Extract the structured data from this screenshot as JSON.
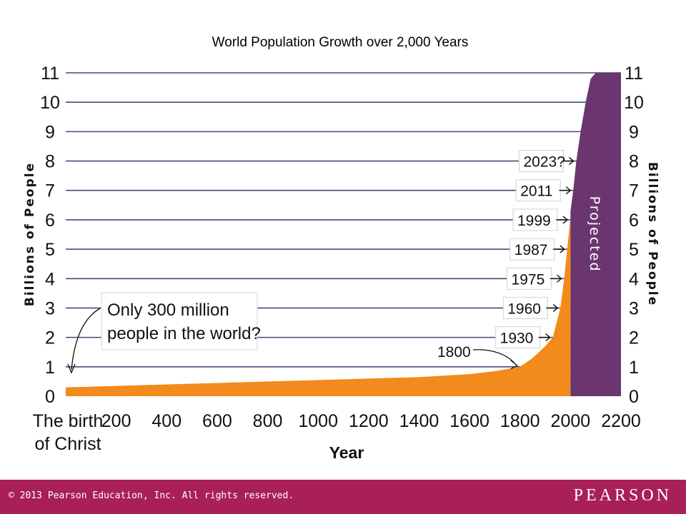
{
  "chart_data": {
    "type": "area",
    "title": "World Population Growth over 2,000 Years",
    "xlabel": "Year",
    "ylabel": "Billions of People",
    "ylabel_right": "Billions of People",
    "xlim": [
      0,
      2200
    ],
    "ylim": [
      0,
      11
    ],
    "x_tick_labels": [
      "The birth of Christ",
      "200",
      "400",
      "600",
      "800",
      "1000",
      "1200",
      "1400",
      "1600",
      "1800",
      "2000",
      "2200"
    ],
    "x_ticks": [
      0,
      200,
      400,
      600,
      800,
      1000,
      1200,
      1400,
      1600,
      1800,
      2000,
      2200
    ],
    "y_ticks": [
      0,
      1,
      2,
      3,
      4,
      5,
      6,
      7,
      8,
      9,
      10,
      11
    ],
    "grid": true,
    "series": [
      {
        "name": "",
        "color": "#f28a1c",
        "x": [
          0,
          200,
          400,
          600,
          800,
          1000,
          1200,
          1400,
          1600,
          1700,
          1800,
          1850,
          1900,
          1930,
          1960,
          1975,
          1987,
          1999,
          2000
        ],
        "y": [
          0.3,
          0.35,
          0.4,
          0.45,
          0.5,
          0.55,
          0.6,
          0.65,
          0.75,
          0.85,
          1.0,
          1.3,
          1.7,
          2.0,
          3.0,
          4.0,
          5.0,
          6.0,
          6.3
        ]
      },
      {
        "name": "Projected",
        "color": "#6b3570",
        "x": [
          2000,
          2011,
          2023,
          2040,
          2060,
          2080,
          2100
        ],
        "y": [
          6.3,
          7.0,
          8.0,
          9.0,
          10.0,
          10.8,
          11.0
        ]
      }
    ],
    "annotations": [
      {
        "text": "Only 300 million people in the world?",
        "x": 0,
        "y": 0.3
      },
      {
        "text": "1800",
        "x": 1800,
        "y": 1
      },
      {
        "text": "1930",
        "x": 1930,
        "y": 2
      },
      {
        "text": "1960",
        "x": 1960,
        "y": 3
      },
      {
        "text": "1975",
        "x": 1975,
        "y": 4
      },
      {
        "text": "1987",
        "x": 1987,
        "y": 5
      },
      {
        "text": "1999",
        "x": 1999,
        "y": 6
      },
      {
        "text": "2011",
        "x": 2011,
        "y": 7
      },
      {
        "text": "2023?",
        "x": 2023,
        "y": 8
      },
      {
        "text": "Projected",
        "x": 2070,
        "y": 5
      }
    ]
  },
  "callout": {
    "line1": "Only 300 million",
    "line2": "people in the world?"
  },
  "footer": {
    "copyright": "© 2013  Pearson Education, Inc. All rights reserved.",
    "brand": "PEARSON"
  }
}
